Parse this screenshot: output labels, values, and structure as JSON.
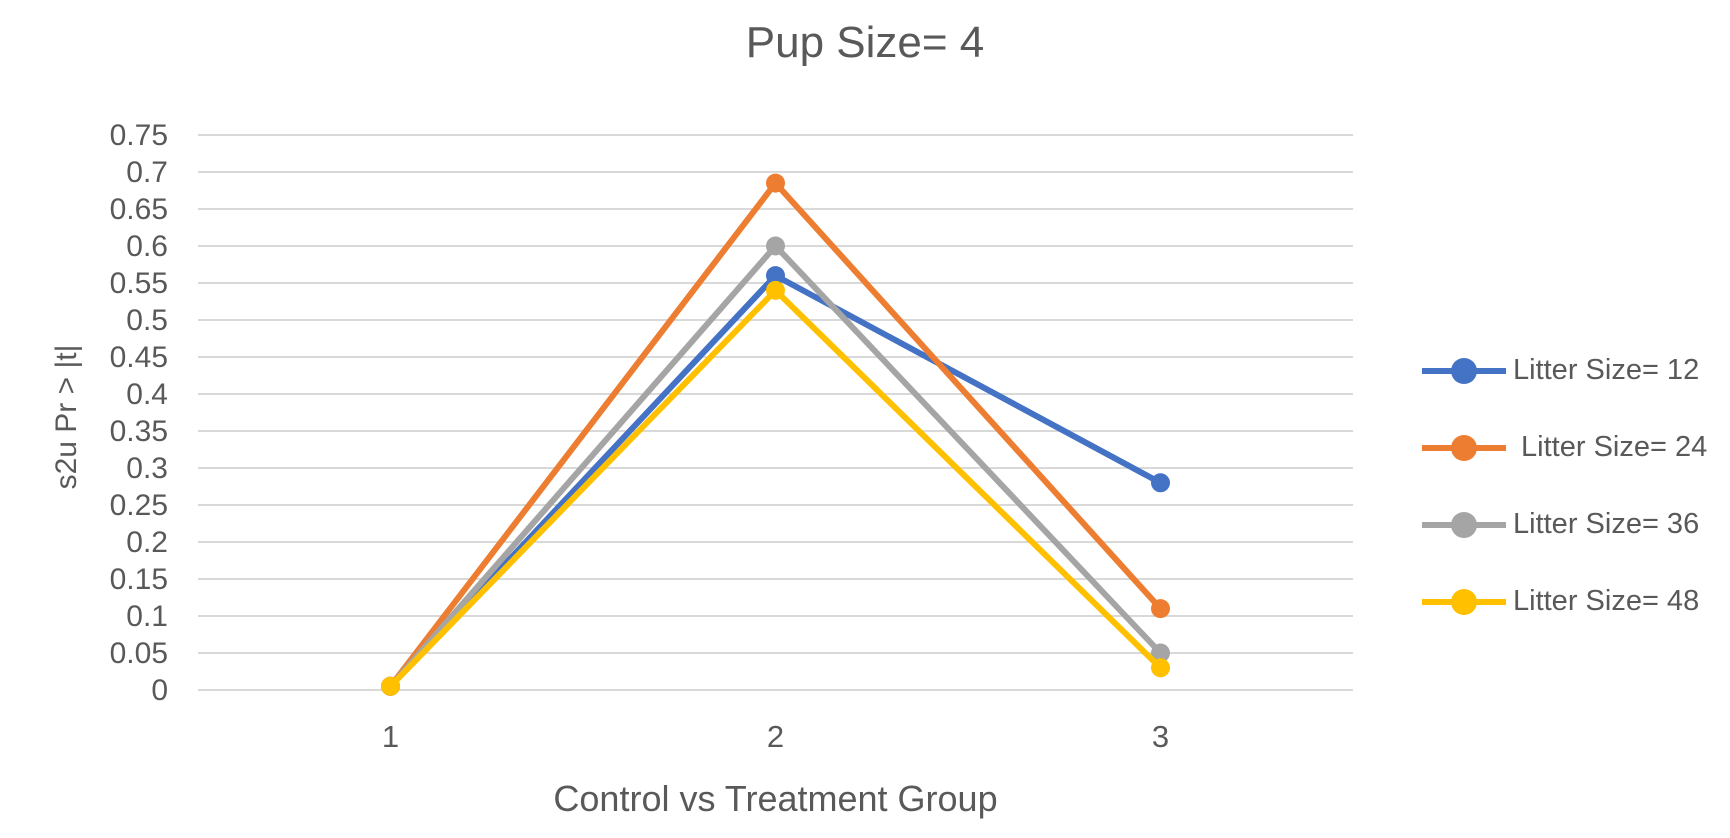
{
  "chart_data": {
    "type": "line",
    "title": "Pup Size= 4",
    "xlabel": "Control vs Treatment Group",
    "ylabel": "s2u Pr > |t|",
    "categories": [
      1,
      2,
      3
    ],
    "x_tick_labels": [
      "1",
      "2",
      "3"
    ],
    "y_tick_labels": [
      "0",
      "0.05",
      "0.1",
      "0.15",
      "0.2",
      "0.25",
      "0.3",
      "0.35",
      "0.4",
      "0.45",
      "0.5",
      "0.55",
      "0.6",
      "0.65",
      "0.7",
      "0.75"
    ],
    "ylim": [
      0,
      0.75
    ],
    "y_step": 0.05,
    "grid": "horizontal",
    "legend_position": "right",
    "marker": "circle",
    "series": [
      {
        "name": "Litter Size= 12",
        "color": "#4472C4",
        "values": [
          0.005,
          0.56,
          0.28
        ]
      },
      {
        "name": " Litter Size= 24",
        "color": "#ED7D31",
        "values": [
          0.005,
          0.685,
          0.11
        ]
      },
      {
        "name": "Litter Size= 36",
        "color": "#A5A5A5",
        "values": [
          0.005,
          0.6,
          0.05
        ]
      },
      {
        "name": "Litter Size= 48",
        "color": "#FFC000",
        "values": [
          0.005,
          0.54,
          0.03
        ]
      }
    ]
  },
  "colors": {
    "text": "#595959",
    "gridline": "#D9D9D9",
    "background": "#FFFFFF"
  }
}
